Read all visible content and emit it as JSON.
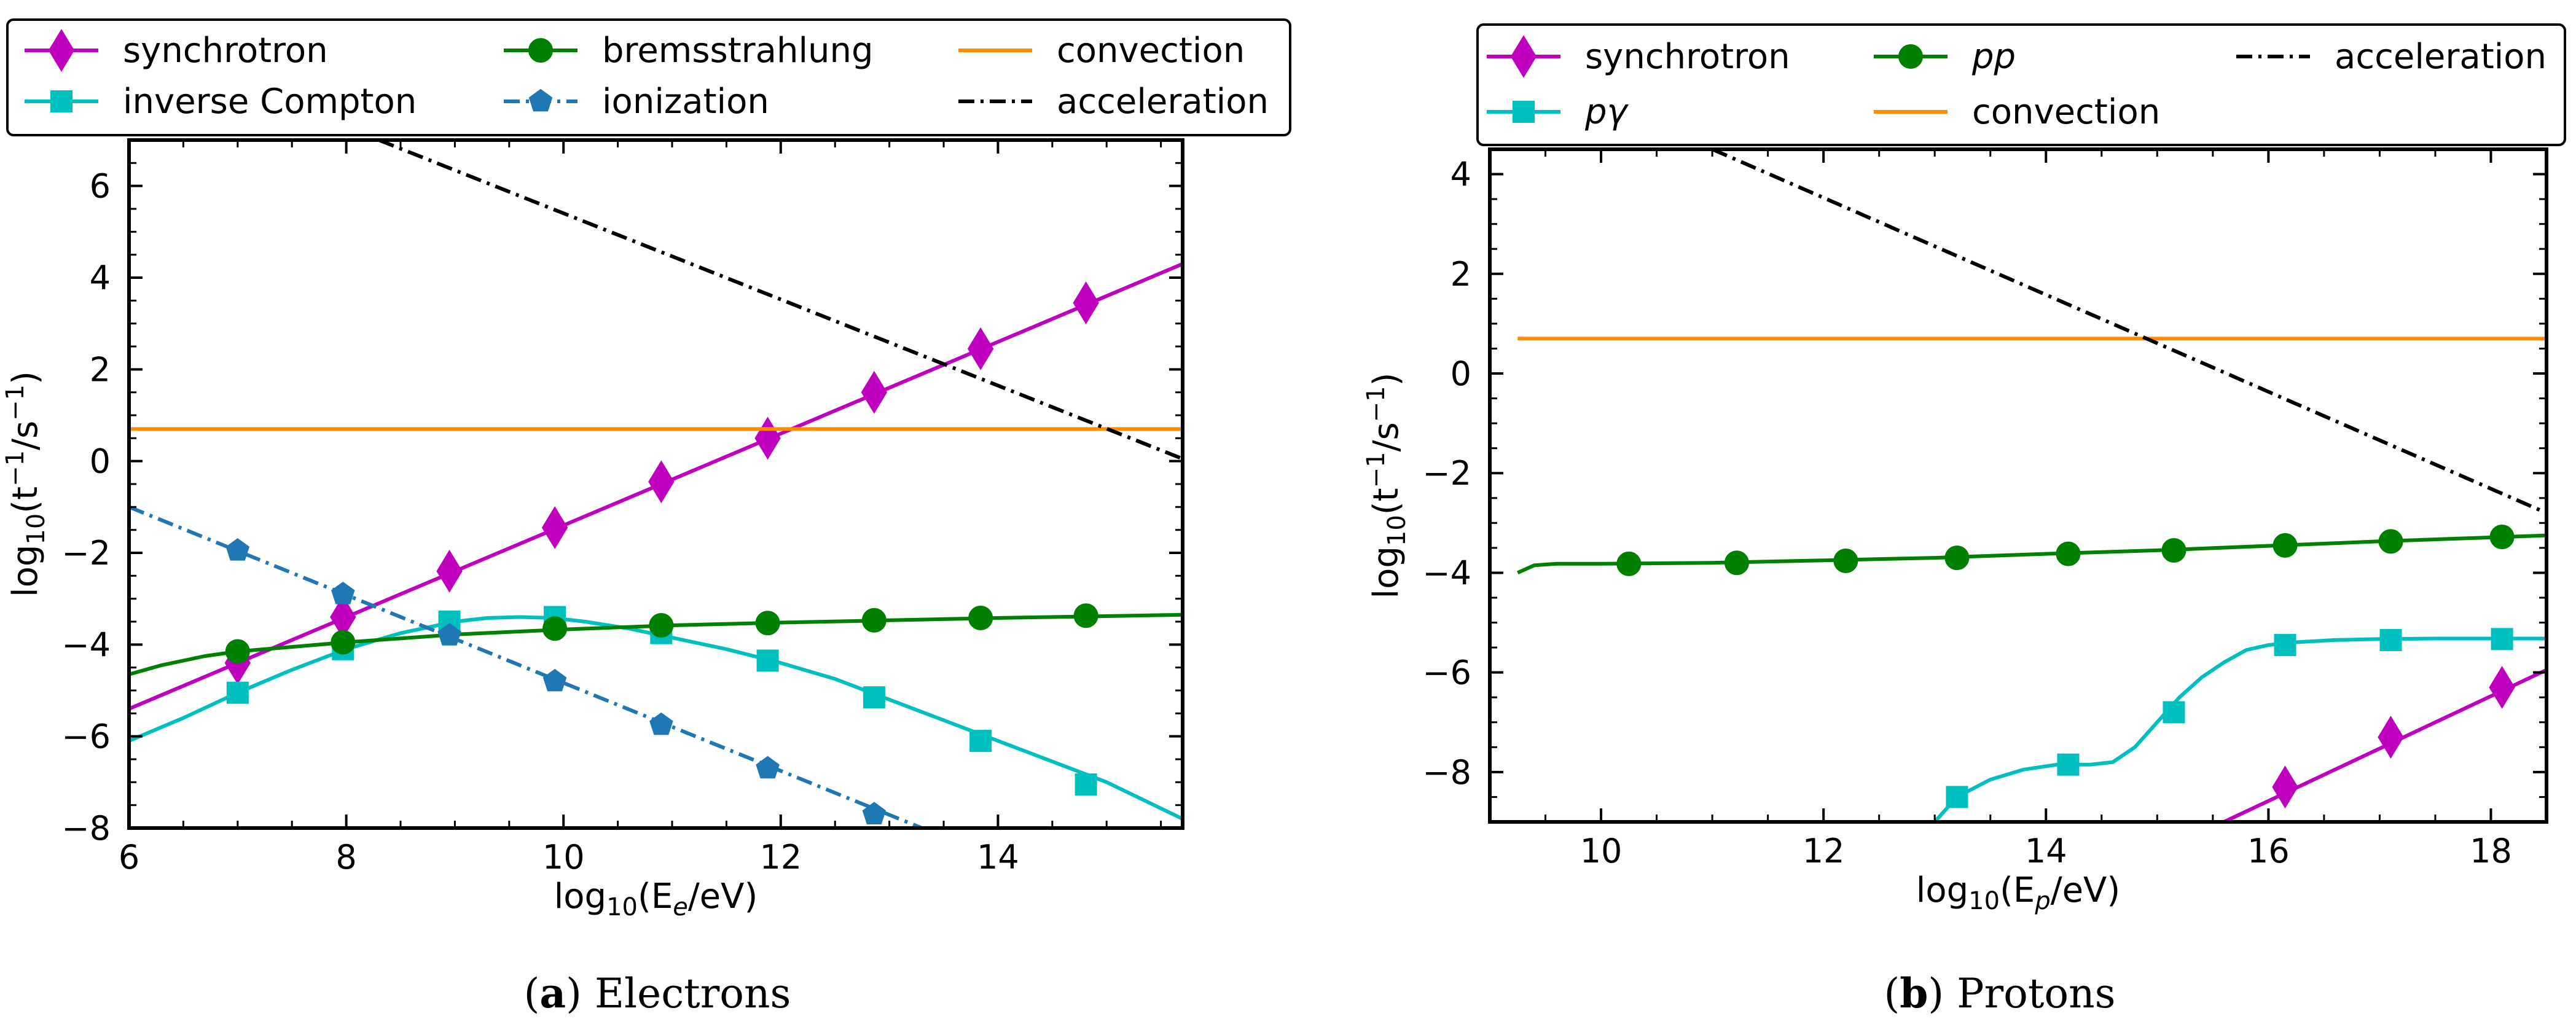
{
  "panels": [
    {
      "caption_letter": "a",
      "caption_text": "Electrons",
      "legend_labels": [
        "synchrotron",
        "inverse Compton",
        "bremsstrahlung",
        "ionization",
        "convection",
        "acceleration"
      ]
    },
    {
      "caption_letter": "b",
      "caption_text": "Protons",
      "legend_labels": [
        "synchrotron",
        "pγ",
        "pp",
        "convection",
        "acceleration"
      ]
    }
  ],
  "colors": {
    "synchrotron": "#bf00bf",
    "inverse_compton": "#00bfbf",
    "bremsstrahlung": "#008000",
    "ionization": "#1f77b4",
    "convection": "#ff8c00",
    "acceleration": "#000000"
  },
  "chart_data": [
    {
      "type": "line",
      "title": "(a) Electrons",
      "xlabel": "log10(Ee/eV)",
      "ylabel": "log10(t−1/s−1)",
      "xlim": [
        6,
        15.7
      ],
      "ylim": [
        -8,
        7
      ],
      "xticks": [
        6,
        8,
        10,
        12,
        14
      ],
      "yticks": [
        -8,
        -6,
        -4,
        -2,
        0,
        2,
        4,
        6
      ],
      "legend_position": "top, above plot",
      "series": [
        {
          "name": "synchrotron",
          "color_key": "synchrotron",
          "style": "solid",
          "marker": "diamond",
          "x": [
            6,
            15.7
          ],
          "y": [
            -5.4,
            4.3
          ],
          "markers_x": [
            7,
            7.97,
            8.95,
            9.92,
            10.9,
            11.88,
            12.86,
            13.84,
            14.81
          ],
          "markers_y": [
            -4.4,
            -3.4,
            -2.4,
            -1.45,
            -0.45,
            0.5,
            1.5,
            2.45,
            3.45
          ]
        },
        {
          "name": "inverse Compton",
          "color_key": "inverse_compton",
          "style": "solid",
          "marker": "square",
          "x": [
            6,
            6.5,
            7,
            7.5,
            8,
            8.5,
            9,
            9.3,
            9.6,
            9.9,
            10.2,
            10.6,
            11,
            11.5,
            12,
            12.5,
            13,
            13.5,
            14,
            14.5,
            15,
            15.7
          ],
          "y": [
            -6.1,
            -5.6,
            -5.05,
            -4.55,
            -4.1,
            -3.75,
            -3.5,
            -3.42,
            -3.4,
            -3.42,
            -3.5,
            -3.65,
            -3.85,
            -4.1,
            -4.4,
            -4.75,
            -5.2,
            -5.65,
            -6.1,
            -6.55,
            -7.0,
            -7.8
          ],
          "markers_x": [
            7,
            7.97,
            8.95,
            9.92,
            10.9,
            11.88,
            12.86,
            13.84,
            14.81
          ],
          "markers_y": [
            -5.05,
            -4.1,
            -3.5,
            -3.4,
            -3.75,
            -4.35,
            -5.15,
            -6.1,
            -7.05
          ]
        },
        {
          "name": "bremsstrahlung",
          "color_key": "bremsstrahlung",
          "style": "solid",
          "marker": "circle",
          "x": [
            6,
            6.3,
            6.7,
            7,
            7.5,
            8,
            9,
            10,
            11,
            12,
            13,
            14,
            15,
            15.7
          ],
          "y": [
            -4.65,
            -4.45,
            -4.25,
            -4.15,
            -4.05,
            -3.95,
            -3.78,
            -3.67,
            -3.58,
            -3.52,
            -3.47,
            -3.42,
            -3.38,
            -3.35
          ],
          "markers_x": [
            7,
            7.97,
            9.92,
            10.9,
            11.88,
            12.86,
            13.84,
            14.81
          ],
          "markers_y": [
            -4.15,
            -3.95,
            -3.65,
            -3.58,
            -3.53,
            -3.47,
            -3.42,
            -3.37
          ]
        },
        {
          "name": "ionization",
          "color_key": "ionization",
          "style": "dashdot",
          "marker": "pentagon",
          "x": [
            6,
            13.3
          ],
          "y": [
            -1.0,
            -8.0
          ],
          "markers_x": [
            7,
            7.97,
            8.95,
            9.92,
            10.9,
            11.88,
            12.86
          ],
          "markers_y": [
            -1.95,
            -2.9,
            -3.8,
            -4.8,
            -5.75,
            -6.7,
            -7.7
          ]
        },
        {
          "name": "convection",
          "color_key": "convection",
          "style": "solid",
          "marker": "none",
          "x": [
            6,
            15.7
          ],
          "y": [
            0.7,
            0.7
          ]
        },
        {
          "name": "acceleration",
          "color_key": "acceleration",
          "style": "dashdot",
          "marker": "none",
          "x": [
            8.3,
            15.7
          ],
          "y": [
            7.0,
            0.05
          ]
        }
      ]
    },
    {
      "type": "line",
      "title": "(b) Protons",
      "xlabel": "log10(Ep/eV)",
      "ylabel": "log10(t−1/s−1)",
      "xlim": [
        9,
        18.5
      ],
      "ylim": [
        -9,
        4.5
      ],
      "xticks": [
        10,
        12,
        14,
        16,
        18
      ],
      "yticks": [
        -8,
        -6,
        -4,
        -2,
        0,
        2,
        4
      ],
      "legend_position": "top, above plot",
      "series": [
        {
          "name": "synchrotron",
          "color_key": "synchrotron",
          "style": "solid",
          "marker": "diamond",
          "x": [
            15.6,
            18.5
          ],
          "y": [
            -9.0,
            -5.95
          ],
          "markers_x": [
            16.15,
            17.1,
            18.1
          ],
          "markers_y": [
            -8.3,
            -7.3,
            -6.3
          ]
        },
        {
          "name": "pγ",
          "color_key": "inverse_compton",
          "style": "solid",
          "marker": "square",
          "x": [
            13.0,
            13.2,
            13.5,
            13.8,
            14.1,
            14.4,
            14.6,
            14.8,
            15.0,
            15.2,
            15.4,
            15.6,
            15.8,
            16.0,
            16.2,
            16.6,
            17.0,
            17.5,
            18.0,
            18.5
          ],
          "y": [
            -9.0,
            -8.5,
            -8.15,
            -7.95,
            -7.85,
            -7.85,
            -7.8,
            -7.5,
            -7.0,
            -6.5,
            -6.1,
            -5.8,
            -5.55,
            -5.45,
            -5.4,
            -5.35,
            -5.33,
            -5.32,
            -5.32,
            -5.32
          ],
          "markers_x": [
            13.2,
            14.2,
            15.15,
            16.15,
            17.1,
            18.1
          ],
          "markers_y": [
            -8.5,
            -7.85,
            -6.8,
            -5.45,
            -5.35,
            -5.33
          ]
        },
        {
          "name": "pp",
          "color_key": "bremsstrahlung",
          "style": "solid",
          "marker": "circle",
          "x": [
            9.25,
            9.4,
            9.6,
            10,
            11,
            12,
            13,
            14,
            15,
            16,
            17,
            18,
            18.5
          ],
          "y": [
            -4.0,
            -3.85,
            -3.82,
            -3.82,
            -3.8,
            -3.75,
            -3.7,
            -3.62,
            -3.55,
            -3.46,
            -3.37,
            -3.29,
            -3.25
          ],
          "markers_x": [
            10.25,
            11.22,
            12.2,
            13.2,
            14.2,
            15.15,
            16.15,
            17.1,
            18.1
          ],
          "markers_y": [
            -3.82,
            -3.8,
            -3.76,
            -3.7,
            -3.62,
            -3.55,
            -3.45,
            -3.37,
            -3.28
          ]
        },
        {
          "name": "convection",
          "color_key": "convection",
          "style": "solid",
          "marker": "none",
          "x": [
            9.25,
            18.5
          ],
          "y": [
            0.7,
            0.7
          ]
        },
        {
          "name": "acceleration",
          "color_key": "acceleration",
          "style": "dashdot",
          "marker": "none",
          "x": [
            11.0,
            18.5
          ],
          "y": [
            4.5,
            -2.8
          ]
        }
      ]
    }
  ]
}
